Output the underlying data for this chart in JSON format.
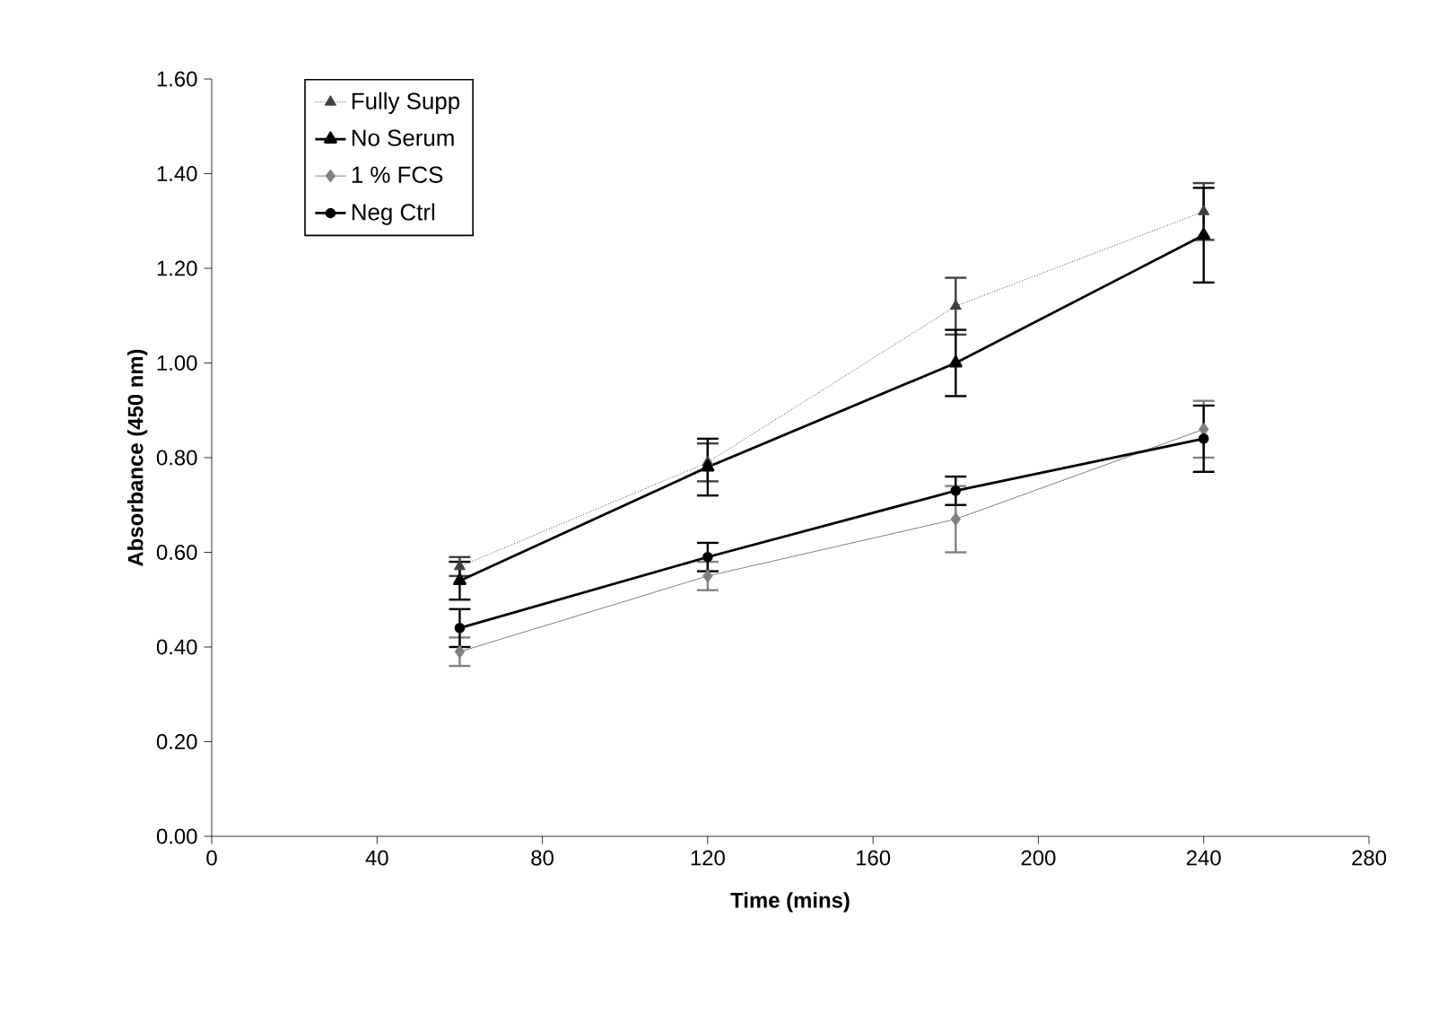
{
  "chart_data": {
    "type": "line",
    "xlabel": "Time (mins)",
    "ylabel": "Absorbance (450 nm)",
    "x": [
      60,
      120,
      180,
      240
    ],
    "series": [
      {
        "name": "Fully Supp",
        "color": "#404040",
        "marker": "triangle",
        "line_style": "dotted",
        "values": [
          0.57,
          0.79,
          1.12,
          1.32
        ],
        "errors": [
          0.02,
          0.04,
          0.06,
          0.06
        ]
      },
      {
        "name": "No Serum",
        "color": "#000000",
        "marker": "triangle",
        "line_style": "solid",
        "values": [
          0.54,
          0.78,
          1.0,
          1.27
        ],
        "errors": [
          0.04,
          0.06,
          0.07,
          0.1
        ]
      },
      {
        "name": "1 % FCS",
        "color": "#808080",
        "marker": "diamond",
        "line_style": "solid",
        "values": [
          0.39,
          0.55,
          0.67,
          0.86
        ],
        "errors": [
          0.03,
          0.03,
          0.07,
          0.06
        ]
      },
      {
        "name": "Neg Ctrl",
        "color": "#000000",
        "marker": "circle",
        "line_style": "solid",
        "values": [
          0.44,
          0.59,
          0.73,
          0.84
        ],
        "errors": [
          0.04,
          0.03,
          0.03,
          0.07
        ]
      }
    ],
    "xlim": [
      0,
      280
    ],
    "xticks": [
      0,
      40,
      80,
      120,
      160,
      200,
      240,
      280
    ],
    "ylim": [
      0,
      1.6
    ],
    "yticks": [
      {
        "value": 0,
        "label": "0.00"
      },
      {
        "value": 0.2,
        "label": "0.20"
      },
      {
        "value": 0.4,
        "label": "0.40"
      },
      {
        "value": 0.6,
        "label": "0.60"
      },
      {
        "value": 0.8,
        "label": "0.80"
      },
      {
        "value": 1.0,
        "label": "1.00"
      },
      {
        "value": 1.2,
        "label": "1.20"
      },
      {
        "value": 1.4,
        "label": "1.40"
      },
      {
        "value": 1.6,
        "label": "1.60"
      }
    ],
    "grid": false,
    "legend": "top left"
  }
}
